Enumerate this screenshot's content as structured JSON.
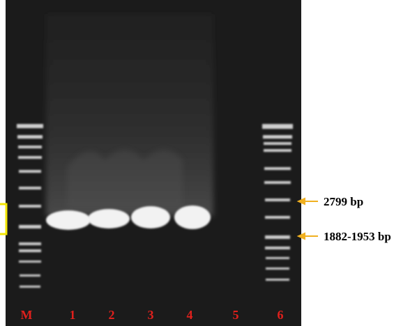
{
  "lanes": [
    "M",
    "1",
    "2",
    "3",
    "4",
    "5",
    "6"
  ],
  "markers": [
    {
      "label": "2799 bp"
    },
    {
      "label": "1882-1953 bp"
    }
  ]
}
